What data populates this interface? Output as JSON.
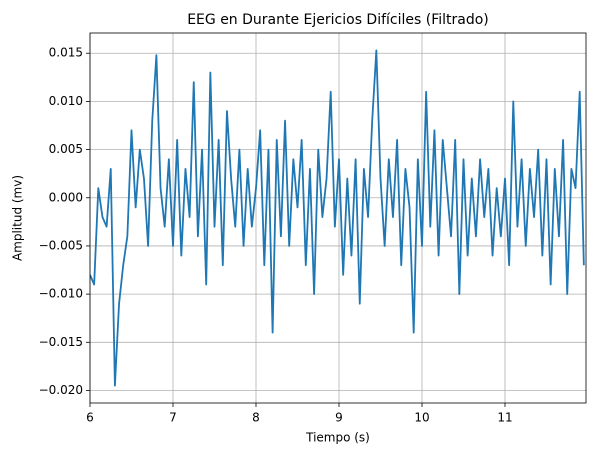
{
  "chart_data": {
    "type": "line",
    "title": "EEG en Durante Ejericios Difíciles (Filtrado)",
    "xlabel": "Tiempo (s)",
    "ylabel": "Amplitud (mv)",
    "color": "#1f77b4",
    "grid": true,
    "xlim": [
      6,
      11.976
    ],
    "ylim": [
      -0.0213,
      0.0171
    ],
    "xticks": [
      6,
      7,
      8,
      9,
      10,
      11
    ],
    "yticks": [
      {
        "value": -0.02,
        "label": "−0.020"
      },
      {
        "value": -0.015,
        "label": "−0.015"
      },
      {
        "value": -0.01,
        "label": "−0.010"
      },
      {
        "value": -0.005,
        "label": "−0.005"
      },
      {
        "value": 0,
        "label": "0.000"
      },
      {
        "value": 0.005,
        "label": "0.005"
      },
      {
        "value": 0.01,
        "label": "0.010"
      },
      0.015
    ],
    "x": [
      6.0,
      6.05,
      6.1,
      6.15,
      6.2,
      6.25,
      6.3,
      6.35,
      6.4,
      6.45,
      6.5,
      6.55,
      6.6,
      6.65,
      6.7,
      6.75,
      6.8,
      6.85,
      6.9,
      6.95,
      7.0,
      7.05,
      7.1,
      7.15,
      7.2,
      7.25,
      7.3,
      7.35,
      7.4,
      7.45,
      7.5,
      7.55,
      7.6,
      7.65,
      7.7,
      7.75,
      7.8,
      7.85,
      7.9,
      7.95,
      8.0,
      8.05,
      8.1,
      8.15,
      8.2,
      8.25,
      8.3,
      8.35,
      8.4,
      8.45,
      8.5,
      8.55,
      8.6,
      8.65,
      8.7,
      8.75,
      8.8,
      8.85,
      8.9,
      8.95,
      9.0,
      9.05,
      9.1,
      9.15,
      9.2,
      9.25,
      9.3,
      9.35,
      9.4,
      9.45,
      9.5,
      9.55,
      9.6,
      9.65,
      9.7,
      9.75,
      9.8,
      9.85,
      9.9,
      9.95,
      10.0,
      10.05,
      10.1,
      10.15,
      10.2,
      10.25,
      10.3,
      10.35,
      10.4,
      10.45,
      10.5,
      10.55,
      10.6,
      10.65,
      10.7,
      10.75,
      10.8,
      10.85,
      10.9,
      10.95,
      11.0,
      11.05,
      11.1,
      11.15,
      11.2,
      11.25,
      11.3,
      11.35,
      11.4,
      11.45,
      11.5,
      11.55,
      11.6,
      11.65,
      11.7,
      11.75,
      11.8,
      11.85,
      11.9,
      11.95
    ],
    "values": [
      -0.008,
      -0.009,
      0.001,
      -0.002,
      -0.003,
      0.003,
      -0.0195,
      -0.011,
      -0.007,
      -0.004,
      0.007,
      -0.001,
      0.005,
      0.002,
      -0.005,
      0.008,
      0.0148,
      0.001,
      -0.003,
      0.004,
      -0.005,
      0.006,
      -0.006,
      0.003,
      -0.002,
      0.012,
      -0.004,
      0.005,
      -0.009,
      0.013,
      -0.003,
      0.006,
      -0.007,
      0.009,
      0.002,
      -0.003,
      0.005,
      -0.005,
      0.003,
      -0.003,
      0.001,
      0.007,
      -0.007,
      0.005,
      -0.014,
      0.006,
      -0.004,
      0.008,
      -0.005,
      0.004,
      -0.001,
      0.006,
      -0.007,
      0.003,
      -0.01,
      0.005,
      -0.002,
      0.002,
      0.011,
      -0.003,
      0.004,
      -0.008,
      0.002,
      -0.006,
      0.004,
      -0.011,
      0.003,
      -0.002,
      0.008,
      0.0153,
      0.002,
      -0.005,
      0.004,
      -0.002,
      0.006,
      -0.007,
      0.003,
      -0.001,
      -0.014,
      0.004,
      -0.005,
      0.011,
      -0.003,
      0.007,
      -0.006,
      0.006,
      0.001,
      -0.004,
      0.006,
      -0.01,
      0.004,
      -0.006,
      0.002,
      -0.004,
      0.004,
      -0.002,
      0.003,
      -0.006,
      0.001,
      -0.004,
      0.002,
      -0.007,
      0.01,
      -0.003,
      0.004,
      -0.005,
      0.003,
      -0.002,
      0.005,
      -0.006,
      0.004,
      -0.009,
      0.003,
      -0.004,
      0.006,
      -0.01,
      0.003,
      0.001,
      0.011,
      -0.007
    ]
  }
}
